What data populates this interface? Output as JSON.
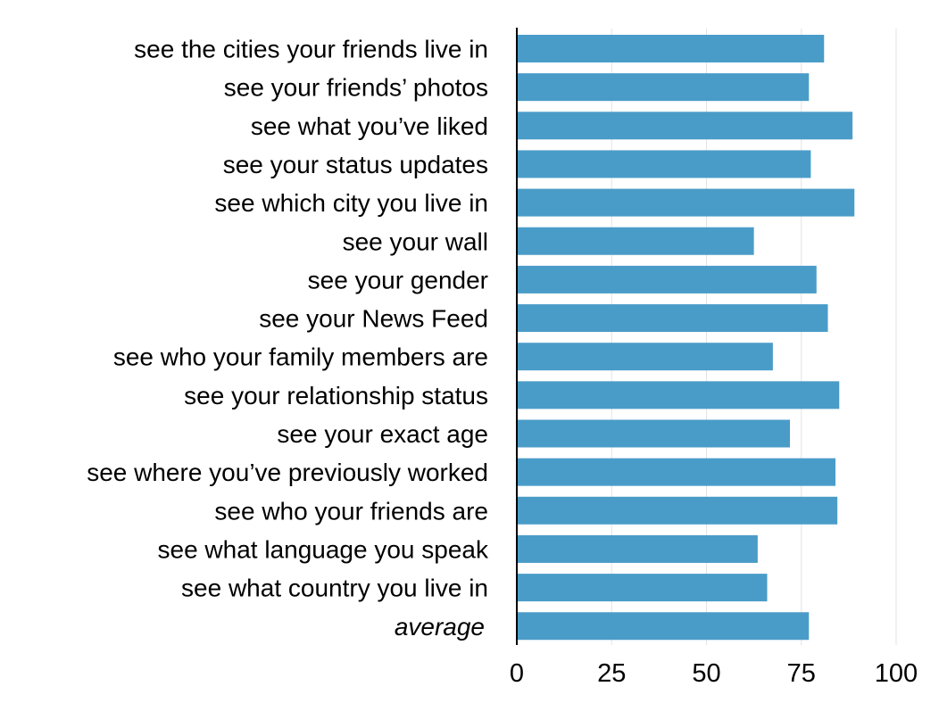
{
  "chart_data": {
    "type": "bar",
    "orientation": "horizontal",
    "categories": [
      "see the cities your friends live in",
      "see your friends’ photos",
      "see what you’ve liked",
      "see your status updates",
      "see which city you live in",
      "see your wall",
      "see your gender",
      "see your News Feed",
      "see who your family members are",
      "see your relationship status",
      "see your exact age",
      "see where you’ve previously worked",
      "see who your friends are",
      "see what language you speak",
      "see what country you live in",
      "average"
    ],
    "italic_categories": [
      "average"
    ],
    "values": [
      81,
      77,
      88.5,
      77.5,
      89,
      62.5,
      79,
      82,
      67.5,
      85,
      72,
      84,
      84.5,
      63.5,
      66,
      77
    ],
    "xlim": [
      0,
      100
    ],
    "xticks": [
      0,
      25,
      50,
      75,
      100
    ],
    "title": "",
    "xlabel": "",
    "ylabel": "",
    "grid": "vertical",
    "legend": "none",
    "colors": {
      "bar": "#4a9cc8",
      "grid": "#e3e3e3",
      "axis": "#000000"
    }
  }
}
